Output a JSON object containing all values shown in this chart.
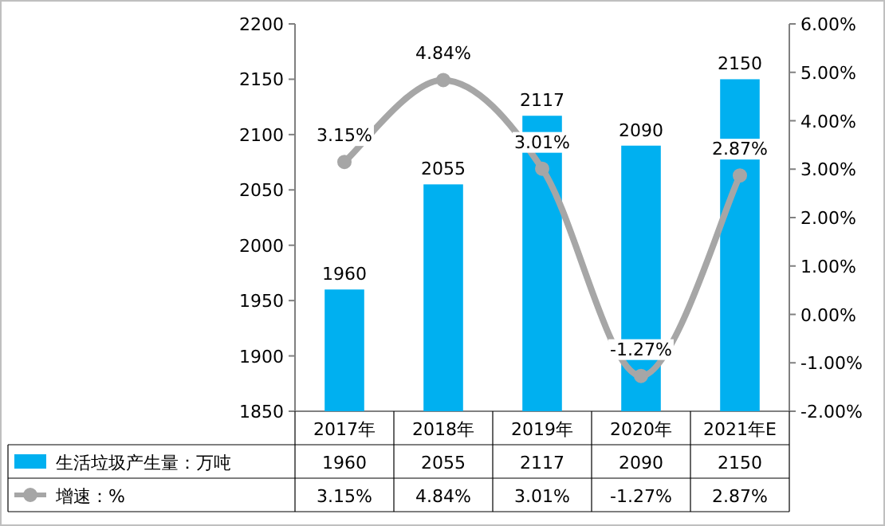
{
  "chart_data": {
    "type": "bar",
    "categories": [
      "2017年",
      "2018年",
      "2019年",
      "2020年",
      "2021年E"
    ],
    "series": [
      {
        "name": "生活垃圾产生量：万吨",
        "color": "#00b0f0",
        "values": [
          1960,
          2055,
          2117,
          2090,
          2150
        ],
        "value_labels": [
          "1960",
          "2055",
          "2117",
          "2090",
          "2150"
        ]
      },
      {
        "name": "增速：%",
        "type": "line",
        "axis": "y2",
        "color": "#a6a6a6",
        "values": [
          3.15,
          4.84,
          3.01,
          -1.27,
          2.87
        ],
        "value_labels": [
          "3.15%",
          "4.84%",
          "3.01%",
          "-1.27%",
          "2.87%"
        ]
      }
    ],
    "ylim": [
      1850,
      2200
    ],
    "yticks": [
      1850,
      1900,
      1950,
      2000,
      2050,
      2100,
      2150,
      2200
    ],
    "y2lim": [
      -2,
      6
    ],
    "y2ticks": [
      {
        "value": -2,
        "label": "-2.00%"
      },
      {
        "value": -1,
        "label": "-1.00%"
      },
      {
        "value": 0,
        "label": "0.00%"
      },
      {
        "value": 1,
        "label": "1.00%"
      },
      {
        "value": 2,
        "label": "2.00%"
      },
      {
        "value": 3,
        "label": "3.00%"
      },
      {
        "value": 4,
        "label": "4.00%"
      },
      {
        "value": 5,
        "label": "5.00%"
      },
      {
        "value": 6,
        "label": "6.00%"
      }
    ],
    "legend": "bottom",
    "marker": "circle"
  }
}
